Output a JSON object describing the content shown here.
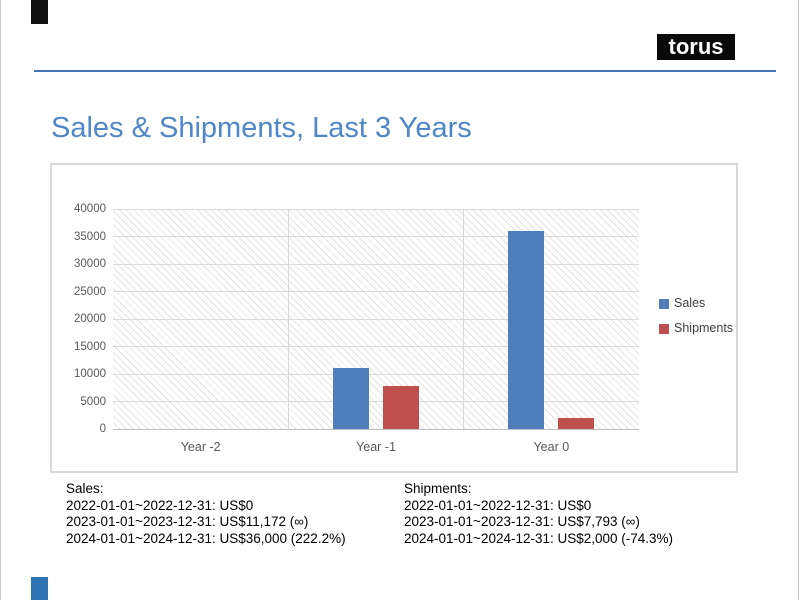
{
  "header": {
    "logo_text": "torus",
    "title": "Sales & Shipments, Last 3 Years"
  },
  "chart_data": {
    "type": "bar",
    "title": "",
    "categories": [
      "Year -2",
      "Year -1",
      "Year 0"
    ],
    "series": [
      {
        "name": "Sales",
        "color": "#4e7ebb",
        "values": [
          0,
          11172,
          36000
        ]
      },
      {
        "name": "Shipments",
        "color": "#c0504d",
        "values": [
          0,
          7793,
          2000
        ]
      }
    ],
    "ylim": [
      0,
      40000
    ],
    "ytick_interval": 5000,
    "yticks": [
      0,
      5000,
      10000,
      15000,
      20000,
      25000,
      30000,
      35000,
      40000
    ],
    "xlabel": "",
    "ylabel": "",
    "grid": true,
    "legend_position": "right",
    "plot_background": "diagonal-hatch"
  },
  "summary": {
    "sales": {
      "heading": "Sales:",
      "lines": [
        "2022-01-01~2022-12-31: US$0",
        "2023-01-01~2023-12-31: US$11,172 (∞)",
        "2024-01-01~2024-12-31: US$36,000 (222.2%)"
      ]
    },
    "shipments": {
      "heading": "Shipments:",
      "lines": [
        "2022-01-01~2022-12-31: US$0",
        "2023-01-01~2023-12-31: US$7,793 (∞)",
        "2024-01-01~2024-12-31: US$2,000 (-74.3%)"
      ]
    }
  },
  "colors": {
    "title_text": "#4f87c8",
    "divider_line": "#4674be",
    "logo_background": "#0a0a0a",
    "logo_text": "#ffffff",
    "top_accent": "#111111",
    "bottom_accent": "#2e74b5",
    "gridline": "#d9d9d9",
    "axis_line": "#bfbfbf",
    "tick_text": "#595959",
    "legend_text": "#404040",
    "summary_text": "#000000"
  }
}
